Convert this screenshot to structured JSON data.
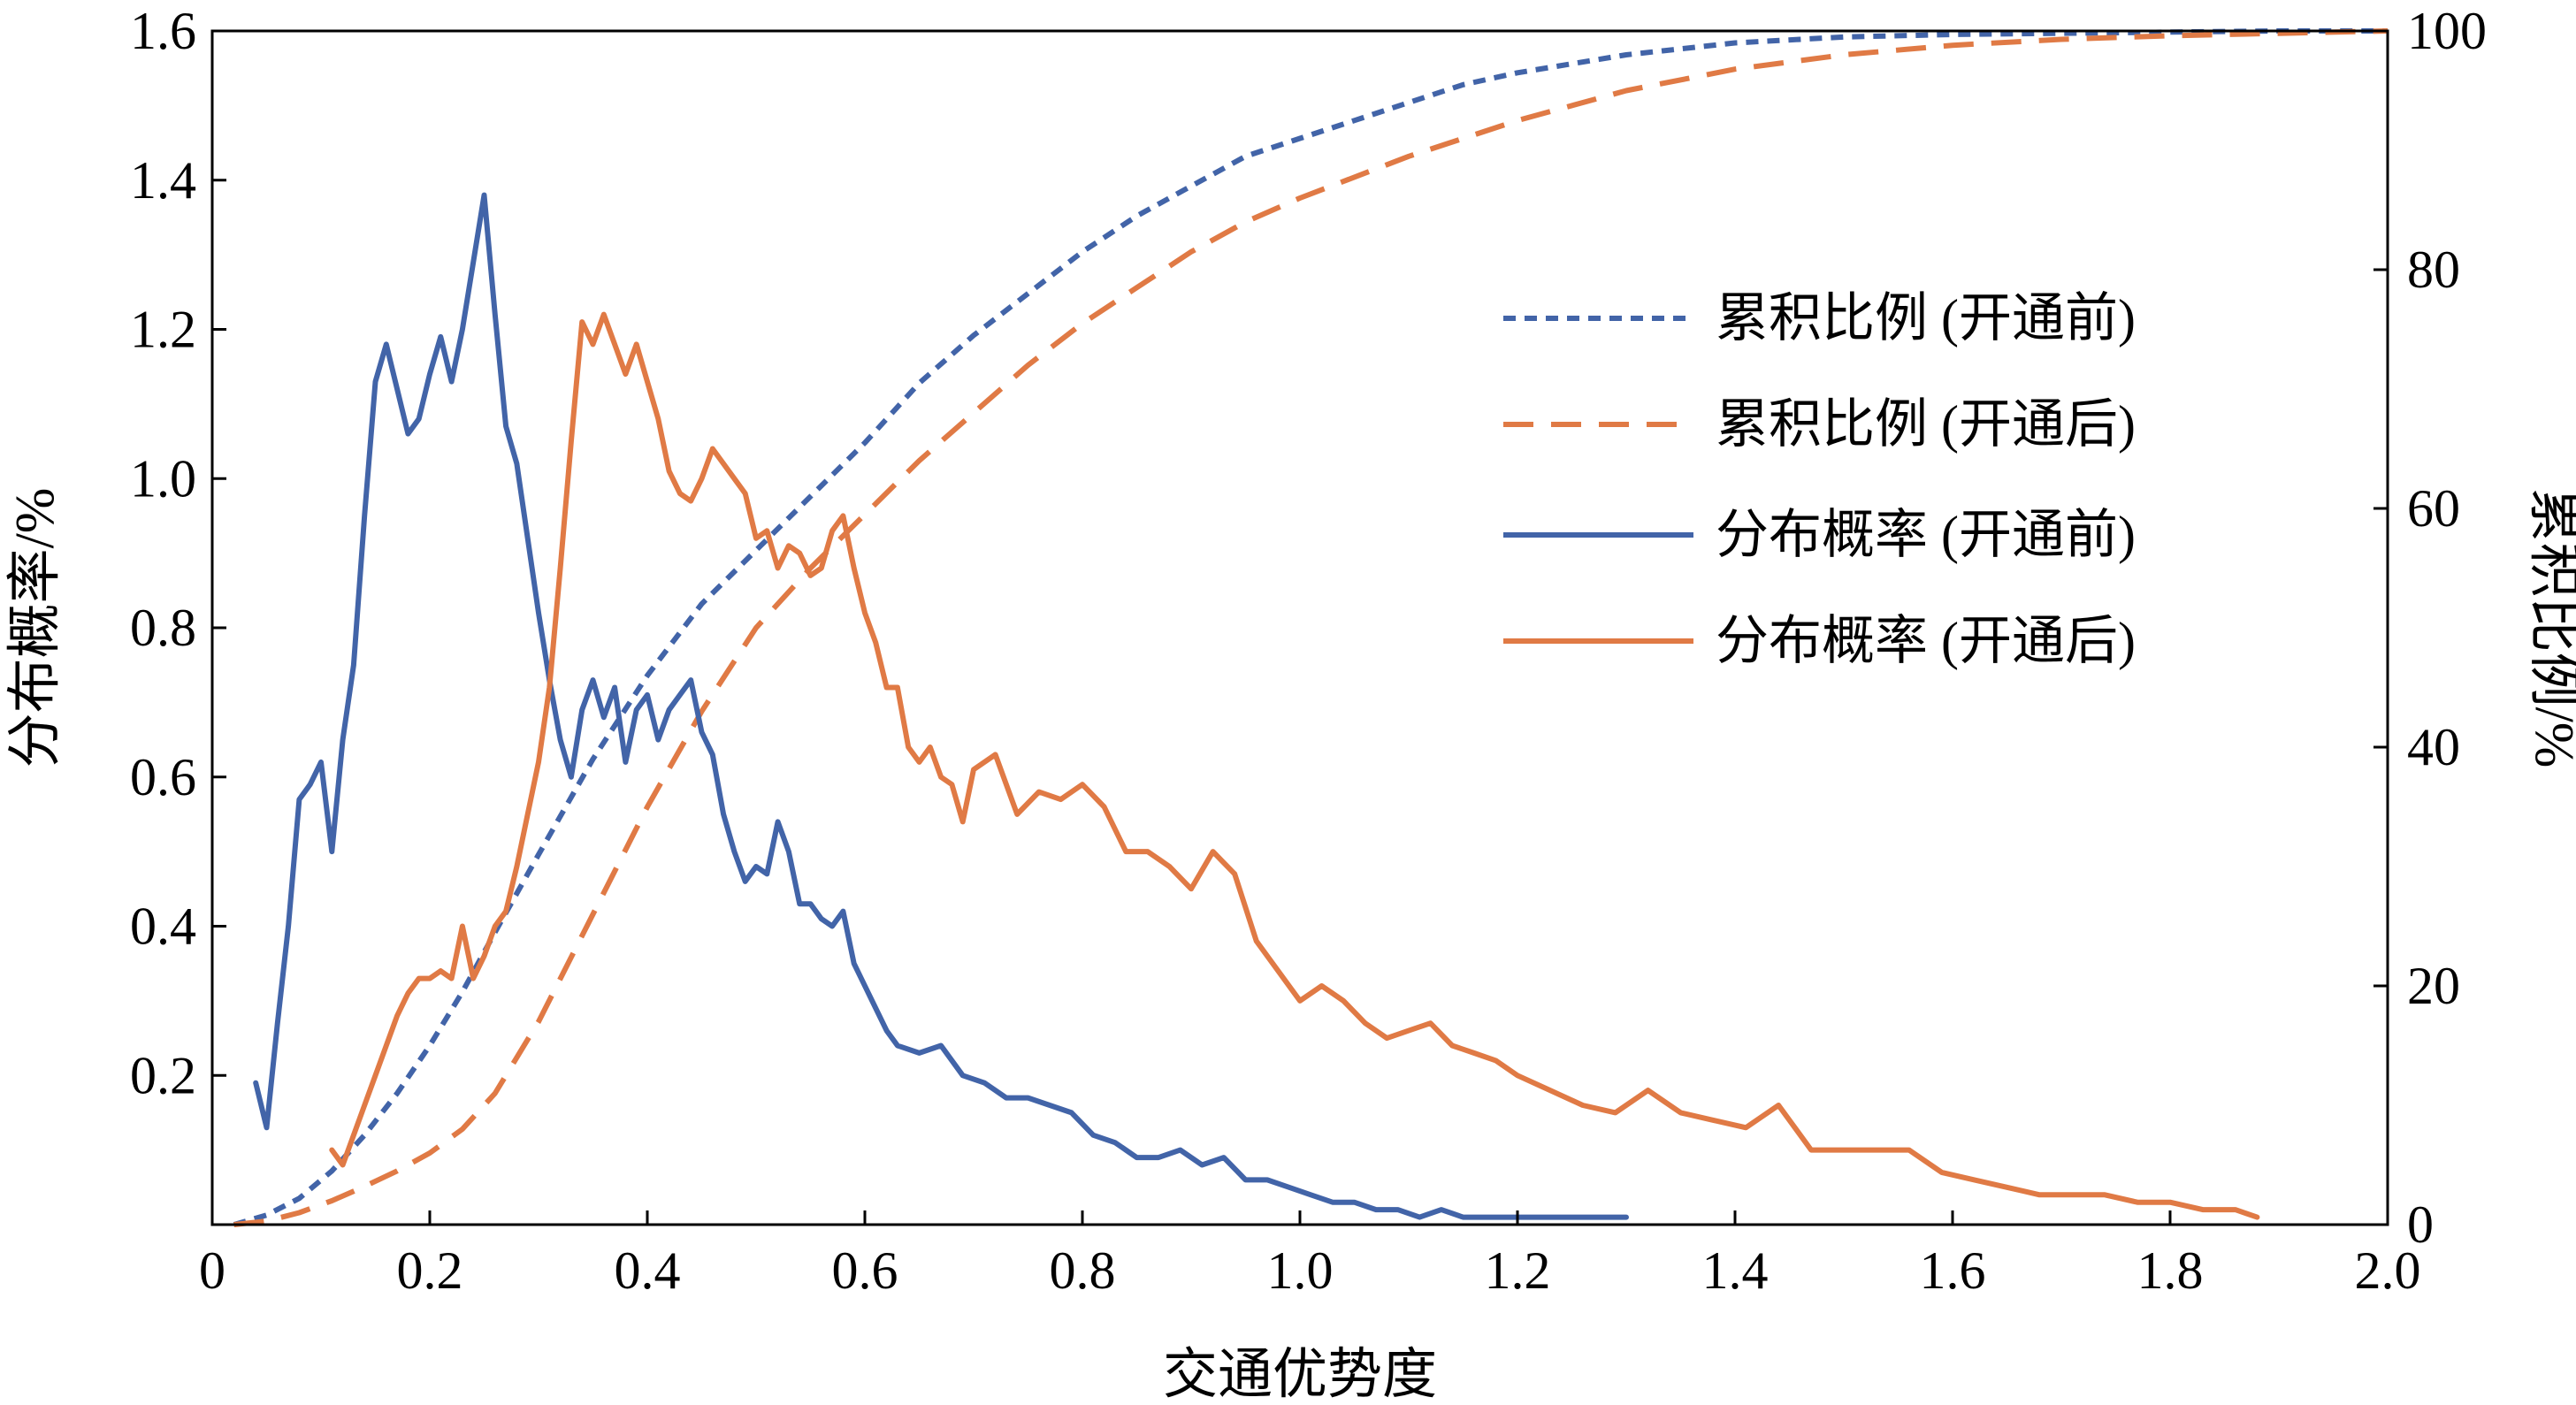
{
  "chart_data": {
    "type": "line",
    "xlabel": "交通优势度",
    "ylabel_left": "分布概率/%",
    "ylabel_right": "累积比例/%",
    "xlim": [
      0,
      2.0
    ],
    "ylim_left": [
      0,
      1.6
    ],
    "ylim_right": [
      0,
      100
    ],
    "x_ticks": [
      "0",
      "0.2",
      "0.4",
      "0.6",
      "0.8",
      "1.0",
      "1.2",
      "1.4",
      "1.6",
      "1.8",
      "2.0"
    ],
    "x_tick_values": [
      0,
      0.2,
      0.4,
      0.6,
      0.8,
      1.0,
      1.2,
      1.4,
      1.6,
      1.8,
      2.0
    ],
    "y_left_ticks": [
      "0.2",
      "0.4",
      "0.6",
      "0.8",
      "1.0",
      "1.2",
      "1.4",
      "1.6"
    ],
    "y_left_tick_values": [
      0.2,
      0.4,
      0.6,
      0.8,
      1.0,
      1.2,
      1.4,
      1.6
    ],
    "y_right_ticks": [
      "0",
      "20",
      "40",
      "60",
      "80",
      "100"
    ],
    "y_right_tick_values": [
      0,
      20,
      40,
      60,
      80,
      100
    ],
    "grid": false,
    "legend_position": "right",
    "series": [
      {
        "name": "累积比例 (开通前)",
        "axis": "right",
        "style": "dotted",
        "color": "#4264A8",
        "x": [
          0.02,
          0.05,
          0.08,
          0.11,
          0.14,
          0.17,
          0.2,
          0.23,
          0.26,
          0.3,
          0.35,
          0.4,
          0.45,
          0.5,
          0.55,
          0.6,
          0.65,
          0.7,
          0.75,
          0.8,
          0.85,
          0.9,
          0.95,
          1.0,
          1.05,
          1.1,
          1.15,
          1.2,
          1.3,
          1.4,
          1.5,
          1.6,
          1.7,
          1.8,
          1.9,
          2.0
        ],
        "values": [
          0,
          0.8,
          2.2,
          4.5,
          7.5,
          11.0,
          15.0,
          19.5,
          24.5,
          31.0,
          39.0,
          46.0,
          52.0,
          56.5,
          61.0,
          65.5,
          70.5,
          74.5,
          78.0,
          81.5,
          84.5,
          87.0,
          89.5,
          91.0,
          92.5,
          94.0,
          95.5,
          96.5,
          98.0,
          99.0,
          99.5,
          99.7,
          99.8,
          99.9,
          100.0,
          100.0
        ]
      },
      {
        "name": "累积比例 (开通后)",
        "axis": "right",
        "style": "dashed",
        "color": "#E07A45",
        "x": [
          0.02,
          0.05,
          0.08,
          0.11,
          0.14,
          0.17,
          0.2,
          0.23,
          0.26,
          0.3,
          0.35,
          0.4,
          0.45,
          0.5,
          0.55,
          0.6,
          0.65,
          0.7,
          0.75,
          0.8,
          0.85,
          0.9,
          0.95,
          1.0,
          1.1,
          1.2,
          1.3,
          1.4,
          1.5,
          1.6,
          1.7,
          1.8,
          1.9,
          2.0
        ],
        "values": [
          0,
          0.3,
          1.0,
          2.0,
          3.2,
          4.5,
          6.0,
          8.0,
          11.0,
          17.0,
          26.0,
          35.0,
          43.0,
          50.0,
          55.0,
          59.5,
          64.0,
          68.0,
          72.0,
          75.5,
          78.5,
          81.5,
          84.0,
          86.0,
          89.5,
          92.5,
          95.0,
          96.8,
          98.0,
          98.8,
          99.3,
          99.6,
          99.8,
          100.0
        ]
      },
      {
        "name": "分布概率 (开通前)",
        "axis": "left",
        "style": "solid",
        "color": "#4264A8",
        "x": [
          0.04,
          0.05,
          0.06,
          0.07,
          0.08,
          0.09,
          0.1,
          0.11,
          0.12,
          0.13,
          0.14,
          0.15,
          0.16,
          0.17,
          0.18,
          0.19,
          0.2,
          0.21,
          0.22,
          0.23,
          0.24,
          0.25,
          0.26,
          0.27,
          0.28,
          0.29,
          0.3,
          0.31,
          0.32,
          0.33,
          0.34,
          0.35,
          0.36,
          0.37,
          0.38,
          0.39,
          0.4,
          0.41,
          0.42,
          0.43,
          0.44,
          0.45,
          0.46,
          0.47,
          0.48,
          0.49,
          0.5,
          0.51,
          0.52,
          0.53,
          0.54,
          0.55,
          0.56,
          0.57,
          0.58,
          0.59,
          0.6,
          0.61,
          0.62,
          0.63,
          0.65,
          0.67,
          0.69,
          0.71,
          0.73,
          0.75,
          0.77,
          0.79,
          0.81,
          0.83,
          0.85,
          0.87,
          0.89,
          0.91,
          0.93,
          0.95,
          0.97,
          0.99,
          1.01,
          1.03,
          1.05,
          1.07,
          1.09,
          1.11,
          1.13,
          1.15,
          1.18,
          1.21,
          1.24,
          1.27,
          1.3
        ],
        "values": [
          0.19,
          0.13,
          0.27,
          0.4,
          0.57,
          0.59,
          0.62,
          0.5,
          0.65,
          0.75,
          0.95,
          1.13,
          1.18,
          1.12,
          1.06,
          1.08,
          1.14,
          1.19,
          1.13,
          1.2,
          1.29,
          1.38,
          1.22,
          1.07,
          1.02,
          0.92,
          0.82,
          0.73,
          0.65,
          0.6,
          0.69,
          0.73,
          0.68,
          0.72,
          0.62,
          0.69,
          0.71,
          0.65,
          0.69,
          0.71,
          0.73,
          0.66,
          0.63,
          0.55,
          0.5,
          0.46,
          0.48,
          0.47,
          0.54,
          0.5,
          0.43,
          0.43,
          0.41,
          0.4,
          0.42,
          0.35,
          0.32,
          0.29,
          0.26,
          0.24,
          0.23,
          0.24,
          0.2,
          0.19,
          0.17,
          0.17,
          0.16,
          0.15,
          0.12,
          0.11,
          0.09,
          0.09,
          0.1,
          0.08,
          0.09,
          0.06,
          0.06,
          0.05,
          0.04,
          0.03,
          0.03,
          0.02,
          0.02,
          0.01,
          0.02,
          0.01,
          0.01,
          0.01,
          0.01,
          0.01,
          0.01
        ]
      },
      {
        "name": "分布概率 (开通后)",
        "axis": "left",
        "style": "solid",
        "color": "#E07A45",
        "x": [
          0.11,
          0.12,
          0.13,
          0.14,
          0.15,
          0.16,
          0.17,
          0.18,
          0.19,
          0.2,
          0.21,
          0.22,
          0.23,
          0.24,
          0.25,
          0.26,
          0.27,
          0.28,
          0.29,
          0.3,
          0.31,
          0.32,
          0.33,
          0.34,
          0.35,
          0.36,
          0.37,
          0.38,
          0.39,
          0.4,
          0.41,
          0.42,
          0.43,
          0.44,
          0.45,
          0.46,
          0.47,
          0.48,
          0.49,
          0.5,
          0.51,
          0.52,
          0.53,
          0.54,
          0.55,
          0.56,
          0.57,
          0.58,
          0.59,
          0.6,
          0.61,
          0.62,
          0.63,
          0.64,
          0.65,
          0.66,
          0.67,
          0.68,
          0.69,
          0.7,
          0.72,
          0.74,
          0.76,
          0.78,
          0.8,
          0.82,
          0.84,
          0.86,
          0.88,
          0.9,
          0.92,
          0.94,
          0.96,
          0.98,
          1.0,
          1.02,
          1.04,
          1.06,
          1.08,
          1.1,
          1.12,
          1.14,
          1.16,
          1.18,
          1.2,
          1.23,
          1.26,
          1.29,
          1.32,
          1.35,
          1.38,
          1.41,
          1.44,
          1.47,
          1.5,
          1.53,
          1.56,
          1.59,
          1.62,
          1.65,
          1.68,
          1.71,
          1.74,
          1.77,
          1.8,
          1.83,
          1.86,
          1.88
        ],
        "values": [
          0.1,
          0.08,
          0.12,
          0.16,
          0.2,
          0.24,
          0.28,
          0.31,
          0.33,
          0.33,
          0.34,
          0.33,
          0.4,
          0.33,
          0.36,
          0.4,
          0.42,
          0.48,
          0.55,
          0.62,
          0.72,
          0.88,
          1.05,
          1.21,
          1.18,
          1.22,
          1.18,
          1.14,
          1.18,
          1.13,
          1.08,
          1.01,
          0.98,
          0.97,
          1.0,
          1.04,
          1.02,
          1.0,
          0.98,
          0.92,
          0.93,
          0.88,
          0.91,
          0.9,
          0.87,
          0.88,
          0.93,
          0.95,
          0.88,
          0.82,
          0.78,
          0.72,
          0.72,
          0.64,
          0.62,
          0.64,
          0.6,
          0.59,
          0.54,
          0.61,
          0.63,
          0.55,
          0.58,
          0.57,
          0.59,
          0.56,
          0.5,
          0.5,
          0.48,
          0.45,
          0.5,
          0.47,
          0.38,
          0.34,
          0.3,
          0.32,
          0.3,
          0.27,
          0.25,
          0.26,
          0.27,
          0.24,
          0.23,
          0.22,
          0.2,
          0.18,
          0.16,
          0.15,
          0.18,
          0.15,
          0.14,
          0.13,
          0.16,
          0.1,
          0.1,
          0.1,
          0.1,
          0.07,
          0.06,
          0.05,
          0.04,
          0.04,
          0.04,
          0.03,
          0.03,
          0.02,
          0.02,
          0.01
        ]
      }
    ]
  }
}
